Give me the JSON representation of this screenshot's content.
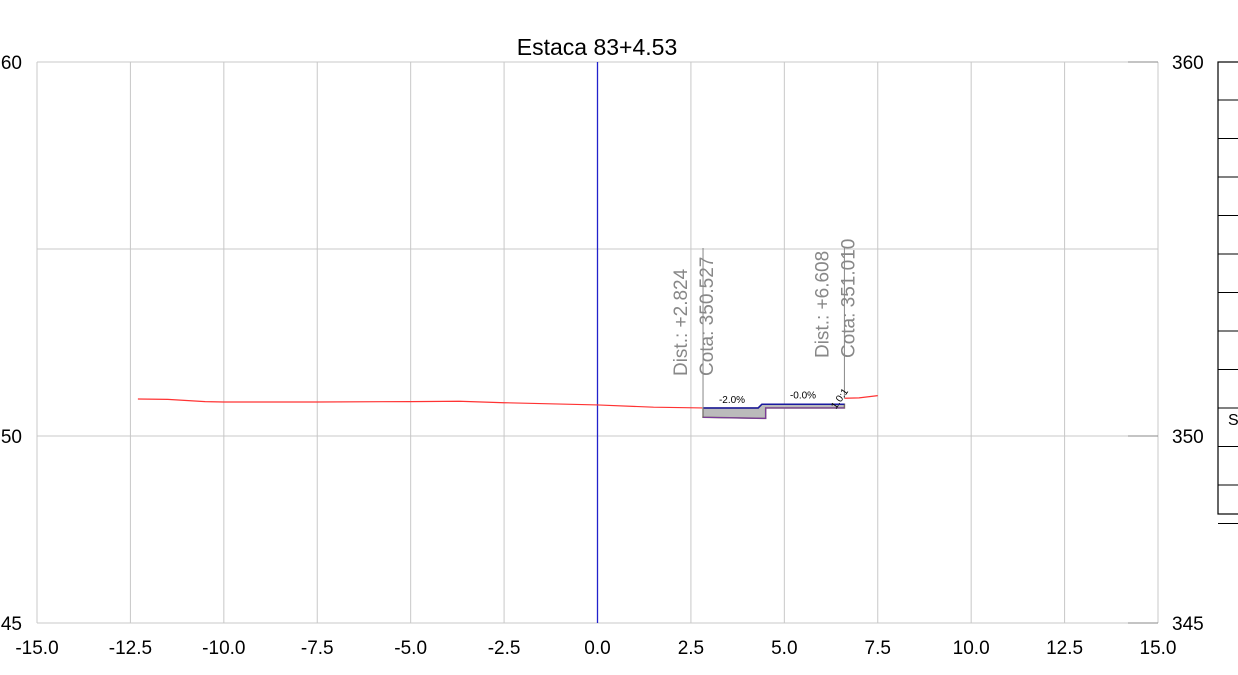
{
  "chart_data": {
    "type": "line",
    "title": "Estaca 83+4.53",
    "xlim": [
      -15,
      15
    ],
    "ylim": [
      345,
      360
    ],
    "grid": true,
    "x_ticks": [
      "-15.0",
      "-12.5",
      "-10.0",
      "-7.5",
      "-5.0",
      "-2.5",
      "0.0",
      "2.5",
      "5.0",
      "7.5",
      "10.0",
      "12.5",
      "15.0"
    ],
    "x_tick_values": [
      -15,
      -12.5,
      -10,
      -7.5,
      -5,
      -2.5,
      0,
      2.5,
      5,
      7.5,
      10,
      12.5,
      15
    ],
    "y_ticks_left": [
      "60",
      "50",
      "45"
    ],
    "y_ticks_right": [
      "360",
      "350",
      "345"
    ],
    "y_tick_values": [
      360,
      350,
      345
    ],
    "centerline_x": 0,
    "series": [
      {
        "color": "#ff3333",
        "x": [
          -12.3,
          -11.5,
          -10.5,
          -10.0,
          -7.5,
          -5.0,
          -3.7,
          -2.5,
          0.0,
          1.5,
          2.8
        ],
        "y": [
          350.99,
          350.98,
          350.92,
          350.91,
          350.91,
          350.92,
          350.93,
          350.89,
          350.83,
          350.77,
          350.75
        ]
      },
      {
        "color": "#ff3333",
        "x": [
          6.608,
          7.0,
          7.5
        ],
        "y": [
          351.01,
          351.02,
          351.08
        ]
      }
    ],
    "section": {
      "top": [
        [
          2.824,
          350.75
        ],
        [
          4.3,
          350.75
        ],
        [
          4.4,
          350.85
        ],
        [
          6.608,
          350.85
        ]
      ],
      "bottom": [
        [
          2.824,
          350.5
        ],
        [
          4.5,
          350.47
        ],
        [
          4.5,
          350.75
        ],
        [
          6.608,
          350.75
        ]
      ]
    },
    "annotations": [
      {
        "x": 2.824,
        "y": 350.527,
        "lines": [
          "Dist.: +2.824",
          "Cota: 350.527"
        ]
      },
      {
        "x": 6.608,
        "y": 351.01,
        "lines": [
          "Dist.: +6.608",
          "Cota: 351.010"
        ]
      }
    ],
    "slope_labels": [
      {
        "text": "-2.0%",
        "x": 3.6,
        "y": 350.88
      },
      {
        "text": "-0.0%",
        "x": 5.5,
        "y": 351.0
      },
      {
        "text": "1.0:1",
        "x": 6.55,
        "y": 350.95
      }
    ]
  },
  "side_legend": {
    "letter": "S"
  }
}
